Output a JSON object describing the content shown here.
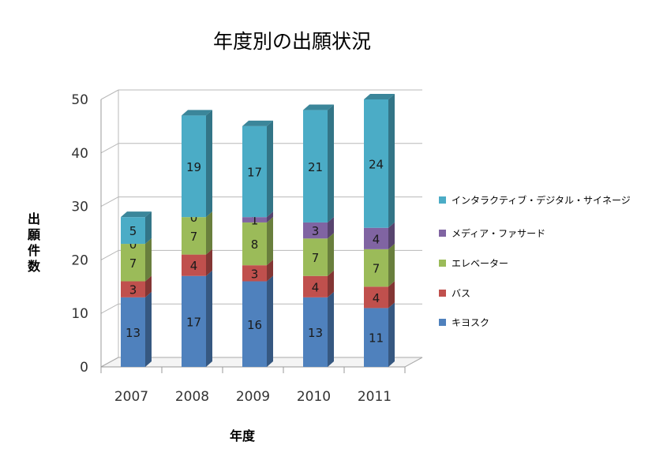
{
  "chart_data": {
    "type": "bar",
    "stacked": true,
    "style": "3d-column",
    "title": "年度別の出願状況",
    "xlabel": "年度",
    "ylabel": "出願件数",
    "categories": [
      "2007",
      "2008",
      "2009",
      "2010",
      "2011"
    ],
    "ylim": [
      0,
      50
    ],
    "yticks": [
      0,
      10,
      20,
      30,
      40,
      50
    ],
    "grid": true,
    "legend_position": "right",
    "series": [
      {
        "name": "キヨスク",
        "color": "#4F81BD",
        "values": [
          13,
          17,
          16,
          13,
          11
        ]
      },
      {
        "name": "バス",
        "color": "#C0504D",
        "values": [
          3,
          4,
          3,
          4,
          4
        ]
      },
      {
        "name": "エレベーター",
        "color": "#9BBB59",
        "values": [
          7,
          7,
          8,
          7,
          7
        ]
      },
      {
        "name": "メディア・ファサード",
        "color": "#8064A2",
        "values": [
          0,
          0,
          1,
          3,
          4
        ]
      },
      {
        "name": "インタラクティブ・デジタル・サイネージ",
        "color": "#4BACC6",
        "values": [
          5,
          19,
          17,
          21,
          24
        ]
      }
    ],
    "data_labels": [
      [
        "13",
        "3",
        "7",
        "0",
        "5"
      ],
      [
        "17",
        "4",
        "7",
        "0",
        "19"
      ],
      [
        "16",
        "3",
        "8",
        "1",
        "17"
      ],
      [
        "13",
        "4",
        "7",
        "3",
        "21"
      ],
      [
        "11",
        "4",
        "7",
        "4",
        "24"
      ]
    ]
  }
}
